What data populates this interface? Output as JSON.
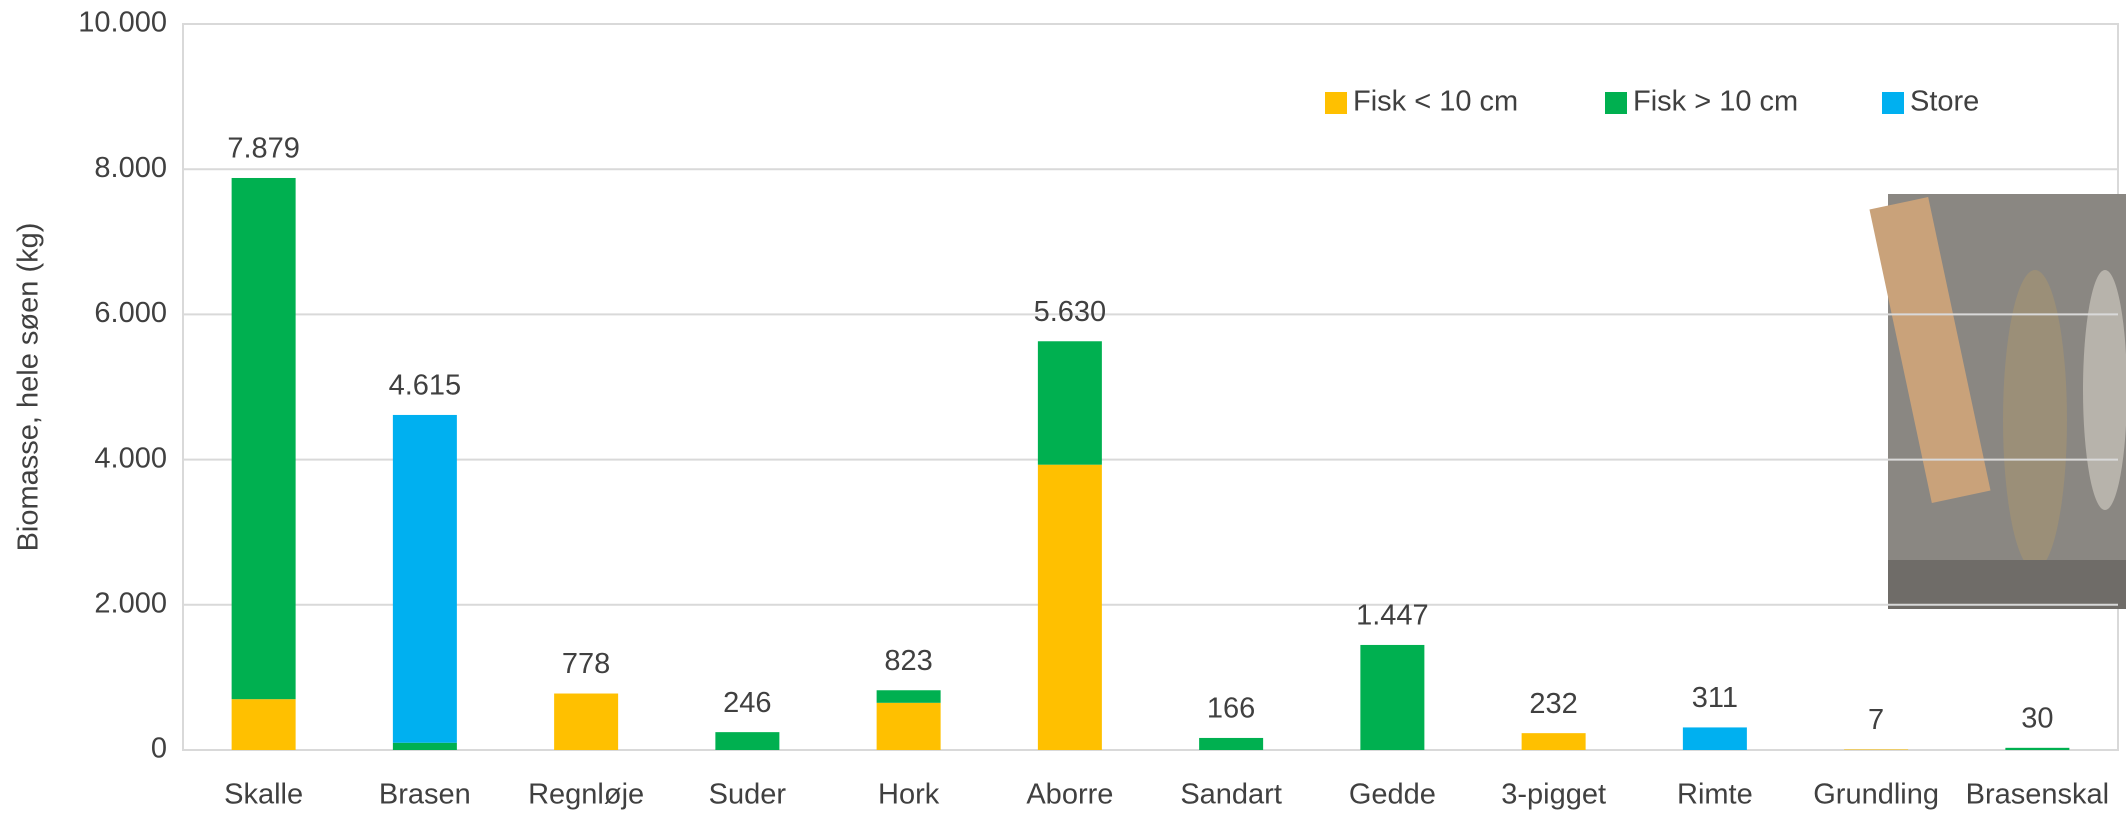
{
  "chart_data": {
    "type": "stacked_bar",
    "y_label": "Biomasse, hele søen (kg)",
    "categories": [
      "Skalle",
      "Brasen",
      "Regnløje",
      "Suder",
      "Hork",
      "Aborre",
      "Sandart",
      "Gedde",
      "3-pigget",
      "Rimte",
      "Grundling",
      "Brasenskal"
    ],
    "series": [
      {
        "name": "Fisk < 10 cm",
        "color": "#ffc000",
        "values": [
          700,
          null,
          778,
          null,
          650,
          3930,
          null,
          null,
          232,
          null,
          7,
          null
        ]
      },
      {
        "name": "Fisk > 10 cm",
        "color": "#00b050",
        "values": [
          7179,
          100,
          null,
          246,
          173,
          1700,
          166,
          1447,
          null,
          null,
          null,
          30
        ]
      },
      {
        "name": "Store",
        "color": "#00b0f0",
        "values": [
          null,
          4515,
          null,
          null,
          null,
          null,
          null,
          null,
          null,
          311,
          null,
          null
        ]
      }
    ],
    "totals": {
      "values": [
        7879,
        4615,
        778,
        246,
        823,
        5630,
        166,
        1447,
        232,
        311,
        7,
        30
      ],
      "value_labels": [
        "7.879",
        "4.615",
        "778",
        "246",
        "823",
        "5.630",
        "166",
        "1.447",
        "232",
        "311",
        "7",
        "30"
      ]
    },
    "ylim": [
      0,
      10000
    ],
    "yticks": [
      0,
      {
        "value": 2000,
        "label": "2.000"
      },
      {
        "value": 4000,
        "label": "4.000"
      },
      {
        "value": 6000,
        "label": "6.000"
      },
      {
        "value": 8000,
        "label": "8.000"
      },
      {
        "value": 10000,
        "label": "10.000"
      }
    ],
    "grid": true,
    "legend": "top-right"
  }
}
